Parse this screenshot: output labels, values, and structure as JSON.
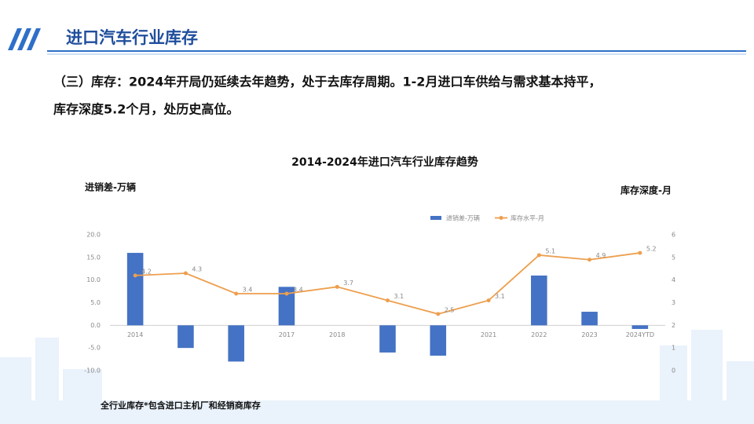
{
  "header": {
    "title": "进口汽车行业库存"
  },
  "body": {
    "lines": [
      "（三）库存：2024年开局仍延续去年趋势，处于去库存周期。1-2月进口车供给与需求基本持平，",
      "库存深度5.2个月，处历史高位。"
    ]
  },
  "chart_data": {
    "type": "bar_line",
    "title": "2014-2024年进口汽车行业库存趋势",
    "y_label": "进销差-万辆",
    "y2_label": "库存深度-月",
    "categories": [
      "2014",
      "2015",
      "2016",
      "2017",
      "2018",
      "2019",
      "2020",
      "2021",
      "2022",
      "2023",
      "2024YTD"
    ],
    "series": [
      {
        "name": "进销差-万辆",
        "type": "bar",
        "color": "#4472c4",
        "values": [
          16,
          -5,
          -8,
          8.5,
          0,
          -6,
          -6.7,
          0,
          11,
          3,
          -0.8
        ]
      },
      {
        "name": "库存水平-月",
        "type": "line",
        "axis": "y2",
        "color": "#ed9f4e",
        "values": [
          4.2,
          4.3,
          3.4,
          3.4,
          3.7,
          3.1,
          2.5,
          3.1,
          5.1,
          4.9,
          5.2
        ]
      }
    ],
    "ylim": [
      -10,
      20
    ],
    "yticks": [
      {
        "value": -10,
        "label": "-10.0"
      },
      {
        "value": -5,
        "label": "-5.0"
      },
      {
        "value": 0,
        "label": "0.0"
      },
      {
        "value": 5,
        "label": "5.0"
      },
      {
        "value": 10,
        "label": "10.0"
      },
      {
        "value": 15,
        "label": "15.0"
      },
      {
        "value": 20,
        "label": "20.0"
      }
    ],
    "y2lim": [
      0,
      6
    ],
    "y2ticks": [
      0,
      1,
      2,
      3,
      4,
      5,
      6
    ],
    "legend": "top"
  },
  "footnote": "全行业库存*包含进口主机厂和经销商库存"
}
